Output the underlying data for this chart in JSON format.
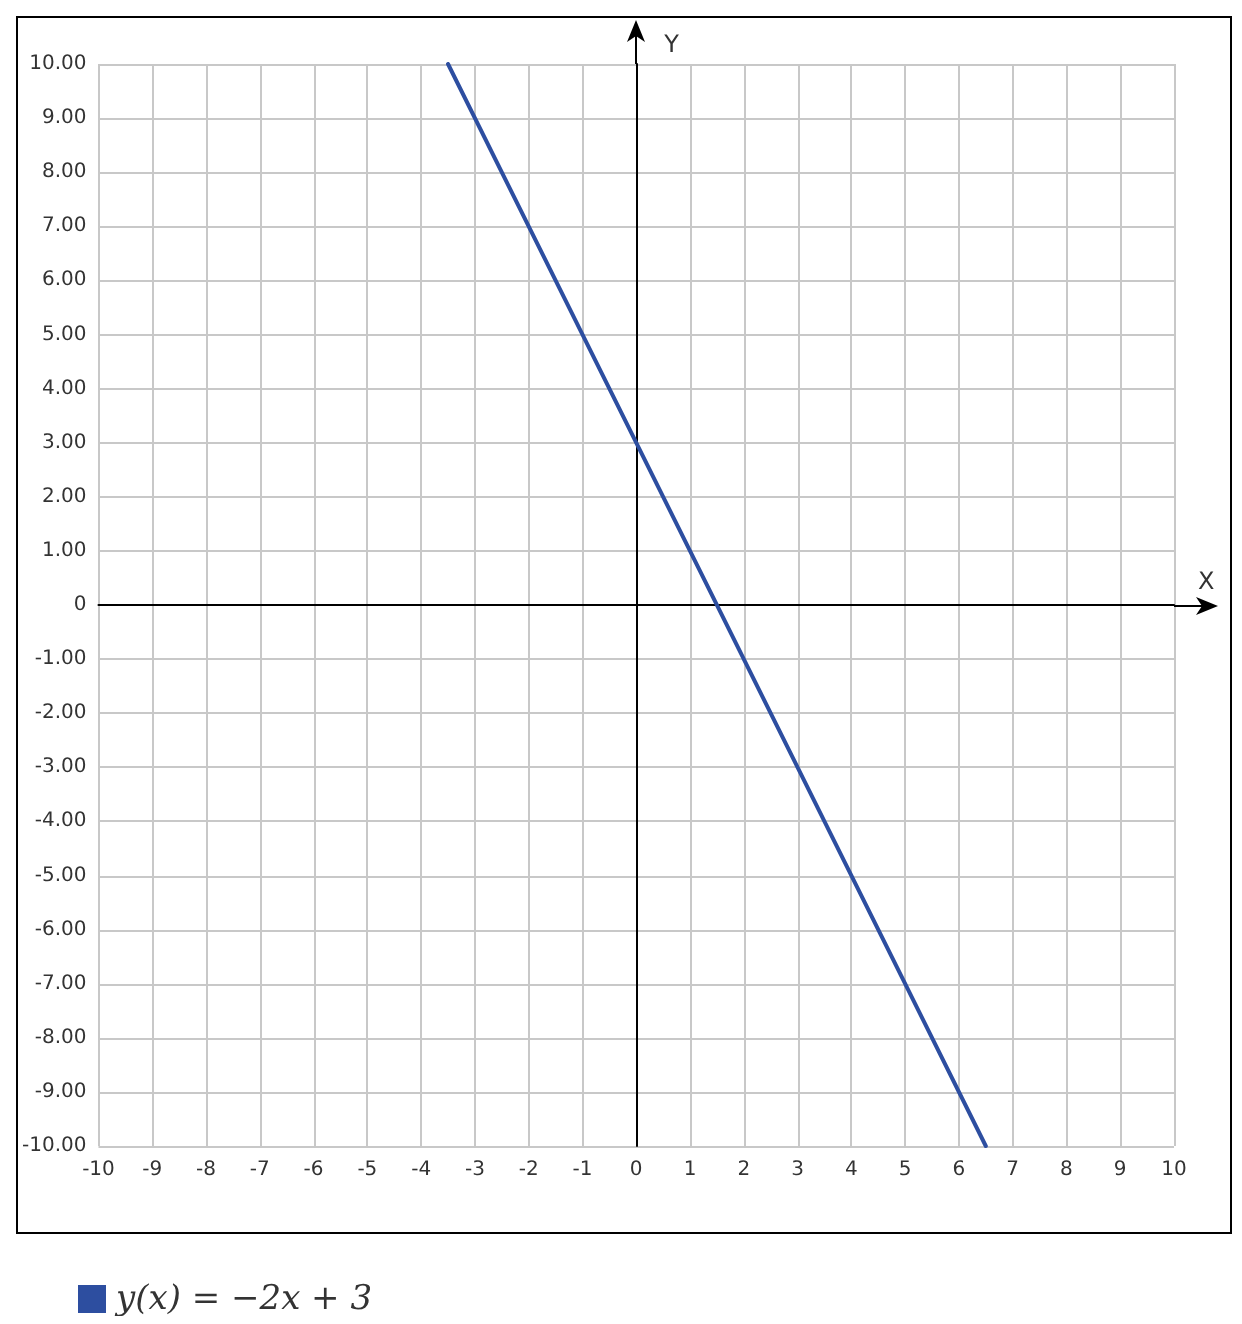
{
  "chart_data": {
    "type": "line",
    "xlabel": "X",
    "ylabel": "Y",
    "xlim": [
      -10,
      10
    ],
    "xticks": [
      -10,
      -9,
      -8,
      -7,
      -6,
      -5,
      -4,
      -3,
      -2,
      -1,
      0,
      1,
      2,
      3,
      4,
      5,
      6,
      7,
      8,
      9,
      10
    ],
    "ylim": [
      -10,
      10
    ],
    "yticks": [
      {
        "value": -10,
        "label": "-10.00"
      },
      {
        "value": -9,
        "label": "-9.00"
      },
      {
        "value": -8,
        "label": "-8.00"
      },
      {
        "value": -7,
        "label": "-7.00"
      },
      {
        "value": -6,
        "label": "-6.00"
      },
      {
        "value": -5,
        "label": "-5.00"
      },
      {
        "value": -4,
        "label": "-4.00"
      },
      {
        "value": -3,
        "label": "-3.00"
      },
      {
        "value": -2,
        "label": "-2.00"
      },
      {
        "value": -1,
        "label": "-1.00"
      },
      0,
      {
        "value": 1,
        "label": "1.00"
      },
      {
        "value": 2,
        "label": "2.00"
      },
      {
        "value": 3,
        "label": "3.00"
      },
      {
        "value": 4,
        "label": "4.00"
      },
      {
        "value": 5,
        "label": "5.00"
      },
      {
        "value": 6,
        "label": "6.00"
      },
      {
        "value": 7,
        "label": "7.00"
      },
      {
        "value": 8,
        "label": "8.00"
      },
      {
        "value": 9,
        "label": "9.00"
      },
      {
        "value": 10,
        "label": "10.00"
      }
    ],
    "series": [
      {
        "name": "y(x) = −2x + 3",
        "color": "#2d4ea0",
        "x": [
          -3.5,
          6.5
        ],
        "values": [
          10,
          -10
        ]
      }
    ],
    "grid": true,
    "legend": "bottom left",
    "marker": "none",
    "line_style": "solid"
  }
}
